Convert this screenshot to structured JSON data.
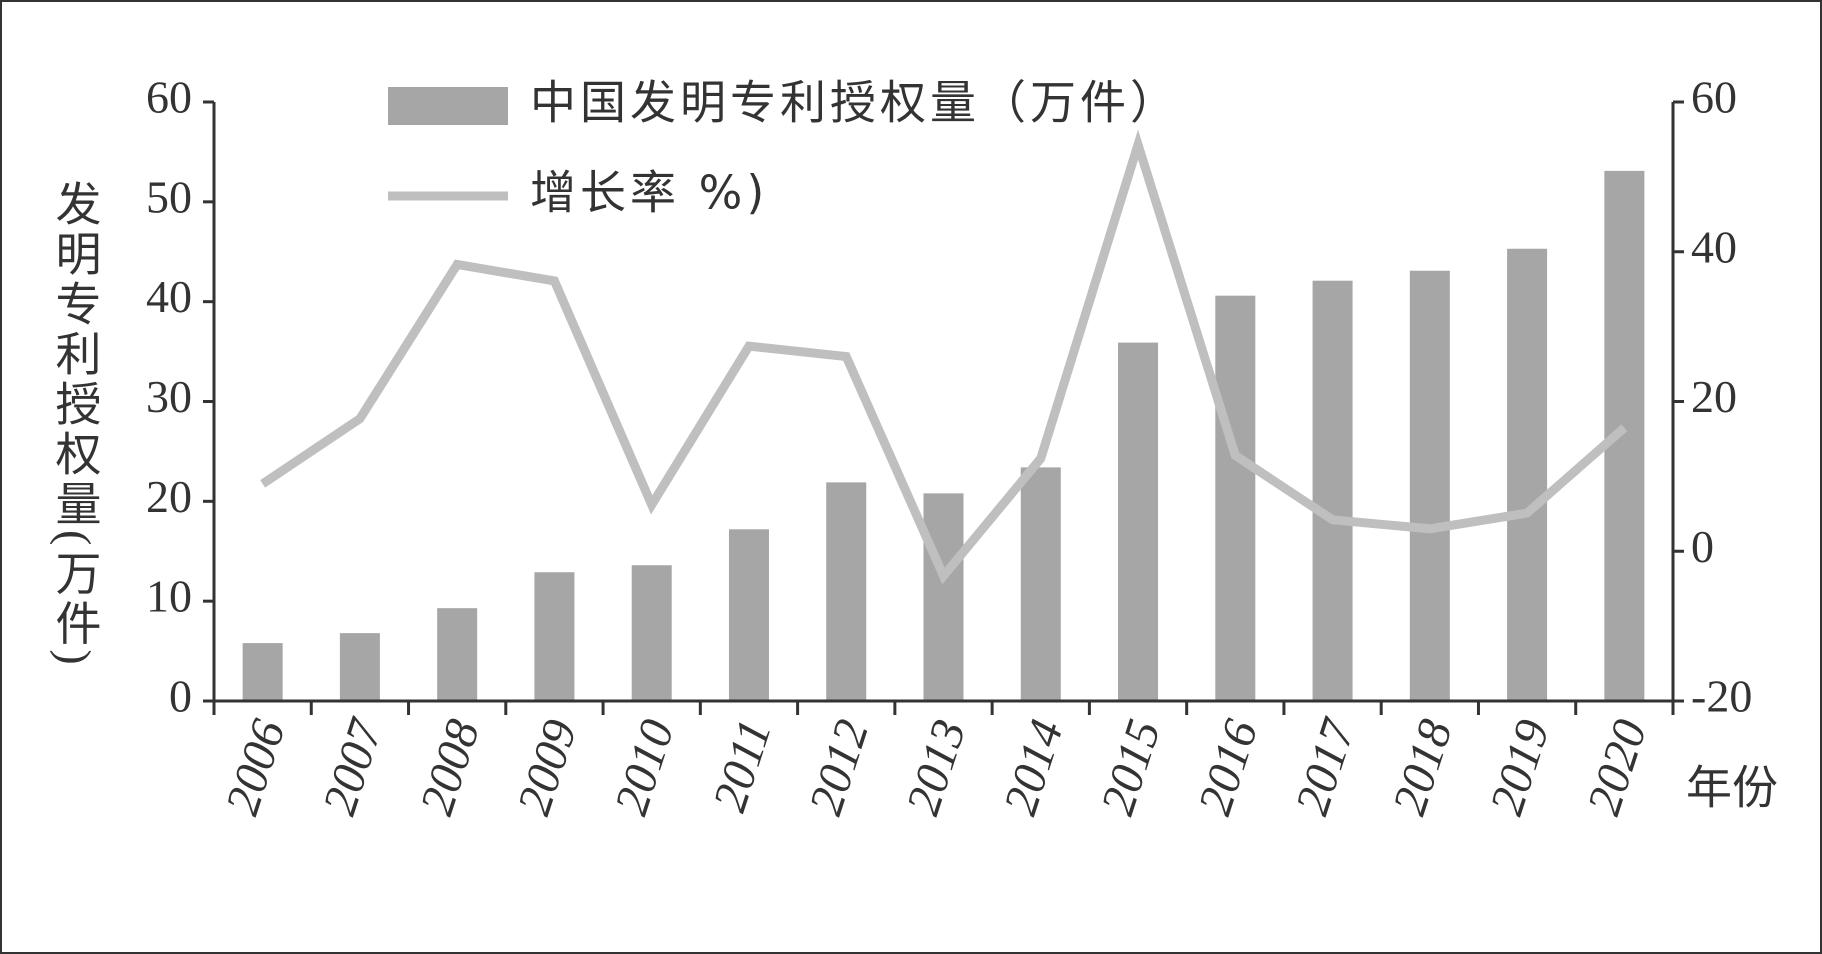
{
  "chart_data": {
    "type": "bar-line",
    "y_label": "发明专利授权量(万件)",
    "x_label": "年份",
    "categories": [
      "2006",
      "2007",
      "2008",
      "2009",
      "2010",
      "2011",
      "2012",
      "2013",
      "2014",
      "2015",
      "2016",
      "2017",
      "2018",
      "2019",
      "2020"
    ],
    "series": [
      {
        "name": "中国发明专利授权量（万件）",
        "type": "bar",
        "color": "#a6a6a6",
        "values": [
          5.8,
          6.8,
          9.3,
          12.9,
          13.6,
          17.2,
          21.9,
          20.8,
          23.4,
          35.9,
          40.6,
          42.1,
          43.1,
          45.3,
          53.1
        ]
      },
      {
        "name": "增长率 %)",
        "type": "line",
        "axis": "y2",
        "color": "#bfbfbf",
        "values": [
          9.0,
          17.7,
          38.3,
          36.1,
          6.2,
          27.4,
          26.0,
          -3.3,
          12.4,
          54.3,
          12.8,
          4.2,
          3.0,
          5.1,
          16.5
        ]
      }
    ],
    "ylim": [
      0,
      60
    ],
    "yticks": [
      0,
      10,
      20,
      30,
      40,
      50,
      60
    ],
    "y2lim": [
      -20,
      60
    ],
    "y2ticks": [
      -20,
      0,
      20,
      40,
      60
    ]
  }
}
